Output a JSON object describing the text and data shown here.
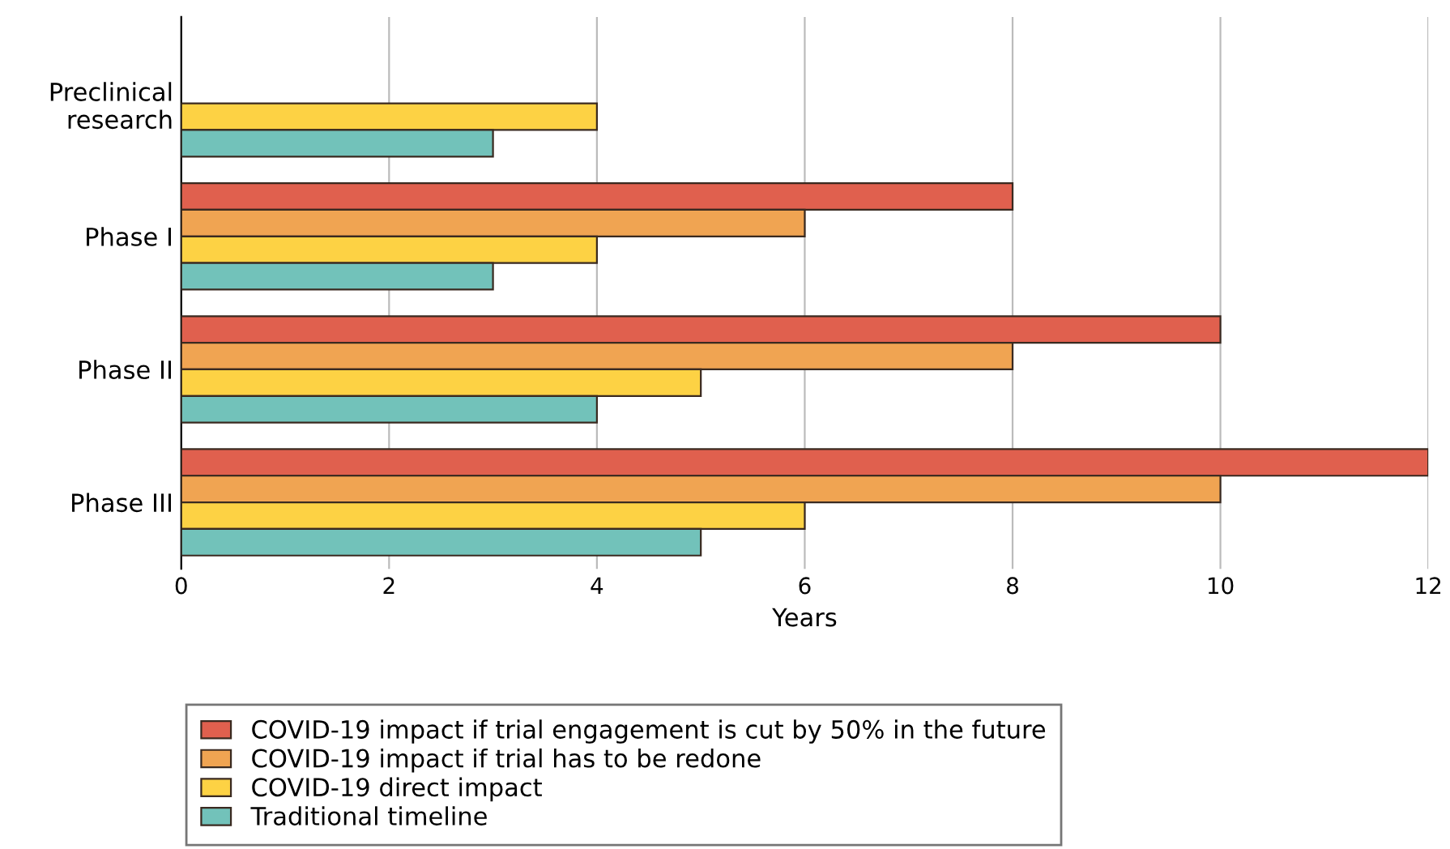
{
  "chart_data": {
    "type": "bar",
    "orientation": "horizontal",
    "xlabel": "Years",
    "categories": [
      "Preclinical\nresearch",
      "Phase I",
      "Phase II",
      "Phase III"
    ],
    "series": [
      {
        "name": "COVID-19 impact if trial engagement is cut by 50% in the future",
        "color": "#e0604e",
        "values": [
          null,
          8,
          10,
          12
        ]
      },
      {
        "name": "COVID-19 impact if trial has to be redone",
        "color": "#f0a452",
        "values": [
          null,
          6,
          8,
          10
        ]
      },
      {
        "name": "COVID-19 direct impact",
        "color": "#fdd244",
        "values": [
          4,
          4,
          5,
          6
        ]
      },
      {
        "name": "Traditional timeline",
        "color": "#72c2ba",
        "values": [
          3,
          3,
          4,
          5
        ]
      }
    ],
    "xlim": [
      0,
      12
    ],
    "xticks": [
      0,
      2,
      4,
      6,
      8,
      10,
      12
    ],
    "grid": "x",
    "legend": "bottom"
  }
}
